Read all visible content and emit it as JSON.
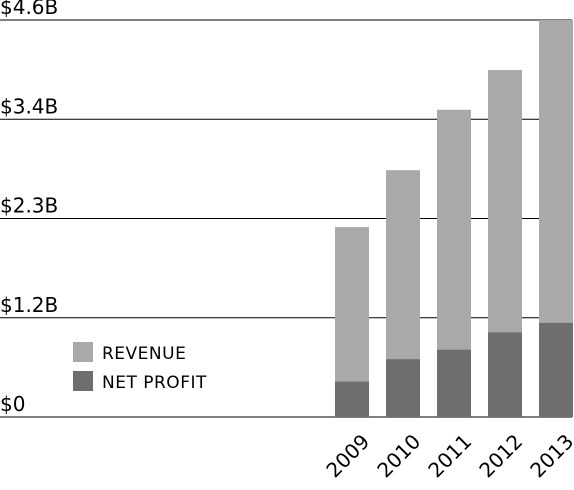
{
  "chart_data": {
    "type": "bar",
    "stacked": false,
    "overlapped": true,
    "categories": [
      "2009",
      "2010",
      "2011",
      "2012",
      "2013"
    ],
    "series": [
      {
        "name": "REVENUE",
        "values": [
          2.2,
          2.86,
          3.56,
          4.02,
          4.6
        ],
        "color": "#a9a9a9"
      },
      {
        "name": "NET PROFIT",
        "values": [
          0.41,
          0.67,
          0.78,
          0.98,
          1.09
        ],
        "color": "#6e6e6e"
      }
    ],
    "y_ticks": [
      {
        "value": 0,
        "label": "$0"
      },
      {
        "value": 1.15,
        "label": "$1.2B"
      },
      {
        "value": 2.3,
        "label": "$2.3B"
      },
      {
        "value": 3.45,
        "label": "$3.4B"
      },
      {
        "value": 4.6,
        "label": "$4.6B"
      }
    ],
    "ylim": [
      0,
      4.6
    ],
    "grid": true,
    "legend_position": "bottom-left"
  }
}
